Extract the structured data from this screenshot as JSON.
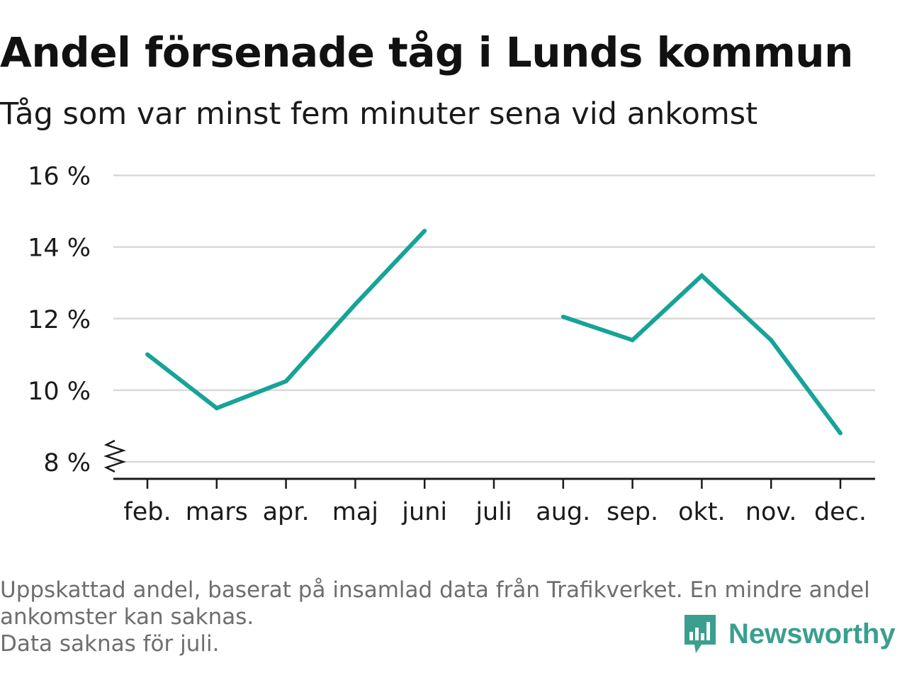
{
  "header": {
    "title": "Andel försenade tåg i Lunds kommun",
    "subtitle": "Tåg som var minst fem minuter sena vid ankomst"
  },
  "footer": {
    "notes": [
      "Uppskattad andel, baserat på insamlad data från Trafikverket. En mindre andel",
      "ankomster kan saknas.",
      "Data saknas för juli."
    ],
    "brand_name": "Newsworthy",
    "brand_icon": "newsworthy-logo-icon",
    "brand_color": "#3a9f8e"
  },
  "chart_data": {
    "type": "line",
    "categories": [
      "feb.",
      "mars",
      "apr.",
      "maj",
      "juni",
      "juli",
      "aug.",
      "sep.",
      "okt.",
      "nov.",
      "dec."
    ],
    "series": [
      {
        "values": [
          11.0,
          9.5,
          10.25,
          12.4,
          14.45,
          null,
          12.05,
          11.4,
          13.2,
          11.4,
          8.8
        ],
        "color": "#17a398"
      }
    ],
    "y_ticks": [
      8,
      10,
      12,
      14,
      16
    ],
    "y_tick_labels": [
      "8 %",
      "10 %",
      "12 %",
      "14 %",
      "16 %"
    ],
    "ylim": [
      8,
      16
    ],
    "y_axis_break": true,
    "grid": true,
    "xlabel": "",
    "ylabel": ""
  }
}
